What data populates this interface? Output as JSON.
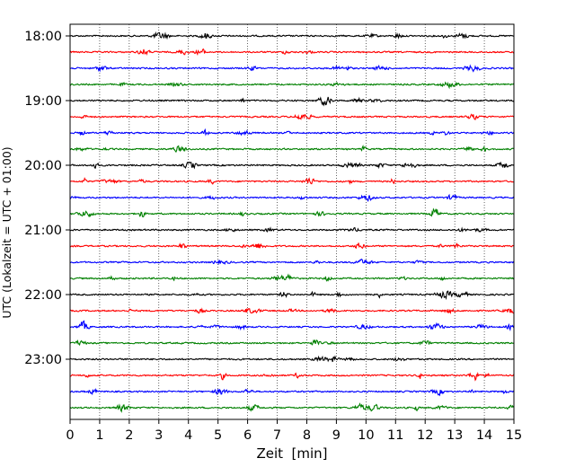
{
  "chart_data": {
    "type": "line",
    "title": "",
    "xlabel": "Zeit  [min]",
    "ylabel": "UTC (Lokalzeit = UTC + 01:00)",
    "xlim": [
      0,
      15
    ],
    "x_ticks": [
      "0",
      "1",
      "2",
      "3",
      "4",
      "5",
      "6",
      "7",
      "8",
      "9",
      "10",
      "11",
      "12",
      "13",
      "14",
      "15"
    ],
    "y_range": [
      "18:00",
      "23:45"
    ],
    "y_ticks": [
      "18:00",
      "19:00",
      "20:00",
      "21:00",
      "22:00",
      "23:00"
    ],
    "grid": "vertical-dotted",
    "trace_interval_minutes": 15,
    "trace_count": 24,
    "trace_colors": [
      "#000000",
      "#ff0000",
      "#0000ff",
      "#008000"
    ],
    "trace_start_times": [
      "18:00",
      "18:15",
      "18:30",
      "18:45",
      "19:00",
      "19:15",
      "19:30",
      "19:45",
      "20:00",
      "20:15",
      "20:30",
      "20:45",
      "21:00",
      "21:15",
      "21:30",
      "21:45",
      "22:00",
      "22:15",
      "22:30",
      "22:45",
      "23:00",
      "23:15",
      "23:30",
      "23:45"
    ],
    "trace_kind": "seismogram noise"
  }
}
